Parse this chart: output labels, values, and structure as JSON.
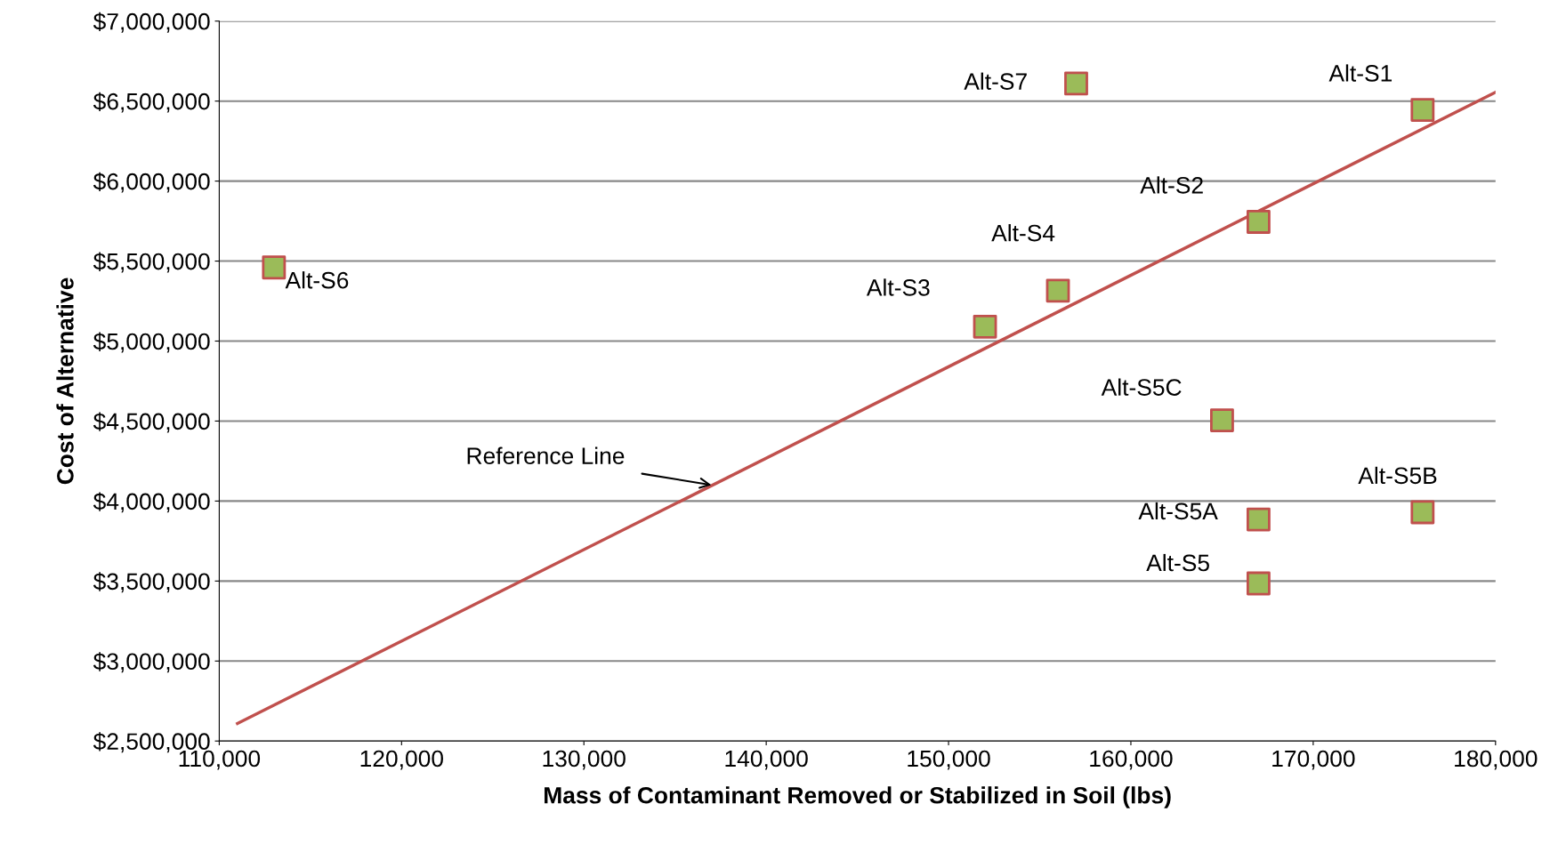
{
  "chart_data": {
    "type": "scatter",
    "xlabel": "Mass of Contaminant Removed or Stabilized in Soil (lbs)",
    "ylabel": "Cost of Alternative",
    "series": [
      {
        "color": "#9bbb59",
        "marker": "square",
        "x": [
          113000,
          157000,
          176000,
          167000,
          156000,
          152000,
          165000,
          176000,
          167000,
          167000
        ],
        "values": [
          5460000,
          6610000,
          6445000,
          5745000,
          5315000,
          5090000,
          4505000,
          3930000,
          3885000,
          3485000
        ]
      },
      {
        "type": "line",
        "color": "#c0504d",
        "marker": "none",
        "x": [
          111000,
          180000
        ],
        "values": [
          2610000,
          6555000
        ]
      }
    ],
    "annotations": [
      {
        "text": "Alt-S6",
        "x": 113000,
        "y": 5460000
      },
      {
        "text": "Alt-S7",
        "x": 157000,
        "y": 6610000
      },
      {
        "text": "Alt-S1",
        "x": 176000,
        "y": 6445000
      },
      {
        "text": "Alt-S2",
        "x": 167000,
        "y": 5745000
      },
      {
        "text": "Alt-S4",
        "x": 156000,
        "y": 5315000
      },
      {
        "text": "Alt-S3",
        "x": 152000,
        "y": 5090000
      },
      {
        "text": "Alt-S5C",
        "x": 165000,
        "y": 4505000
      },
      {
        "text": "Alt-S5B",
        "x": 176000,
        "y": 3930000
      },
      {
        "text": "Alt-S5A",
        "x": 167000,
        "y": 3885000
      },
      {
        "text": "Alt-S5",
        "x": 167000,
        "y": 3485000
      },
      {
        "text": "Reference Line",
        "x": 137000,
        "y": 4100000
      }
    ],
    "xlim": [
      110000,
      180000
    ],
    "xticks": [
      {
        "value": 110000,
        "label": "110,000"
      },
      {
        "value": 120000,
        "label": "120,000"
      },
      {
        "value": 130000,
        "label": "130,000"
      },
      {
        "value": 140000,
        "label": "140,000"
      },
      {
        "value": 150000,
        "label": "150,000"
      },
      {
        "value": 160000,
        "label": "160,000"
      },
      {
        "value": 170000,
        "label": "170,000"
      },
      {
        "value": 180000,
        "label": "180,000"
      }
    ],
    "ylim": [
      2500000,
      7000000
    ],
    "yticks": [
      {
        "value": 2500000,
        "label": "$2,500,000"
      },
      {
        "value": 3000000,
        "label": "$3,000,000"
      },
      {
        "value": 3500000,
        "label": "$3,500,000"
      },
      {
        "value": 4000000,
        "label": "$4,000,000"
      },
      {
        "value": 4500000,
        "label": "$4,500,000"
      },
      {
        "value": 5000000,
        "label": "$5,000,000"
      },
      {
        "value": 5500000,
        "label": "$5,500,000"
      },
      {
        "value": 6000000,
        "label": "$6,000,000"
      },
      {
        "value": 6500000,
        "label": "$6,500,000"
      },
      {
        "value": 7000000,
        "label": "$7,000,000"
      }
    ],
    "grid": "y",
    "legend": false
  }
}
